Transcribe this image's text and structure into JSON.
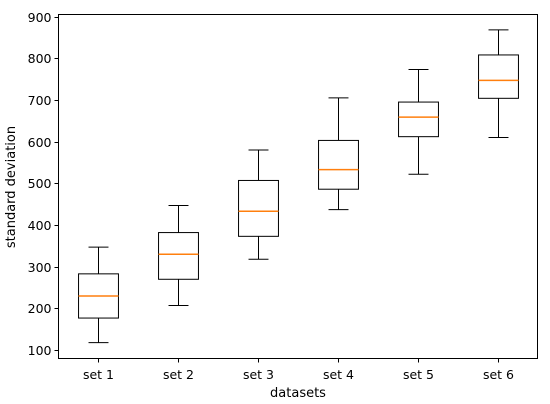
{
  "chart_data": {
    "type": "box",
    "xlabel": "datasets",
    "ylabel": "standard deviation",
    "ylim": [
      80,
      905
    ],
    "yticks": [
      100,
      200,
      300,
      400,
      500,
      600,
      700,
      800,
      900
    ],
    "categories": [
      "set 1",
      "set 2",
      "set 3",
      "set 4",
      "set 5",
      "set 6"
    ],
    "boxes": [
      {
        "label": "set 1",
        "whisker_low": 118,
        "q1": 177,
        "median": 230,
        "q3": 283,
        "whisker_high": 347
      },
      {
        "label": "set 2",
        "whisker_low": 207,
        "q1": 270,
        "median": 330,
        "q3": 382,
        "whisker_high": 447
      },
      {
        "label": "set 3",
        "whisker_low": 318,
        "q1": 373,
        "median": 433,
        "q3": 507,
        "whisker_high": 580
      },
      {
        "label": "set 4",
        "whisker_low": 437,
        "q1": 486,
        "median": 533,
        "q3": 603,
        "whisker_high": 705
      },
      {
        "label": "set 5",
        "whisker_low": 522,
        "q1": 612,
        "median": 659,
        "q3": 695,
        "whisker_high": 773
      },
      {
        "label": "set 6",
        "whisker_low": 610,
        "q1": 704,
        "median": 747,
        "q3": 808,
        "whisker_high": 868
      }
    ],
    "grid": false,
    "colors": {
      "box": "#000000",
      "median": "#ff7f0e"
    }
  }
}
